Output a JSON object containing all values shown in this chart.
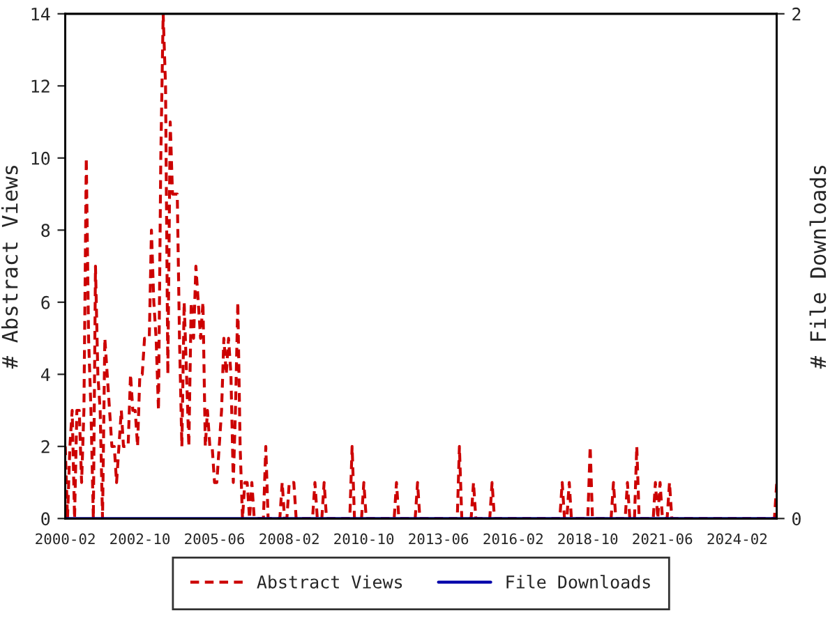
{
  "chart_data": {
    "type": "line",
    "ylabel": "# Abstract Views",
    "y2label": "# File Downloads",
    "xlim": [
      "2000-02",
      "2025-07"
    ],
    "xticks": [
      "2000-02",
      "2002-10",
      "2005-06",
      "2008-02",
      "2010-10",
      "2013-06",
      "2016-02",
      "2018-10",
      "2021-06",
      "2024-02"
    ],
    "ylim": [
      0,
      14
    ],
    "yticks": [
      0,
      2,
      4,
      6,
      8,
      10,
      12,
      14
    ],
    "y2lim": [
      0,
      2
    ],
    "y2ticks": [
      0,
      2
    ],
    "grid": false,
    "legend": "bottom",
    "series": [
      {
        "name": "Abstract Views",
        "color": "#cc0000",
        "line_style": "dashed",
        "axis": "y",
        "x": [
          "2000-02",
          "2000-03",
          "2000-04",
          "2000-05",
          "2000-06",
          "2000-07",
          "2000-08",
          "2000-09",
          "2000-10",
          "2000-11",
          "2000-12",
          "2001-01",
          "2001-02",
          "2001-03",
          "2001-04",
          "2001-05",
          "2001-06",
          "2001-07",
          "2001-08",
          "2001-09",
          "2001-10",
          "2001-11",
          "2001-12",
          "2002-01",
          "2002-02",
          "2002-03",
          "2002-04",
          "2002-05",
          "2002-06",
          "2002-07",
          "2002-08",
          "2002-09",
          "2002-10",
          "2002-11",
          "2002-12",
          "2003-01",
          "2003-02",
          "2003-03",
          "2003-04",
          "2003-05",
          "2003-06",
          "2003-07",
          "2003-08",
          "2003-09",
          "2003-10",
          "2003-11",
          "2003-12",
          "2004-01",
          "2004-02",
          "2004-03",
          "2004-04",
          "2004-05",
          "2004-06",
          "2004-07",
          "2004-08",
          "2004-09",
          "2004-10",
          "2004-11",
          "2004-12",
          "2005-01",
          "2005-02",
          "2005-03",
          "2005-04",
          "2005-05",
          "2005-06",
          "2005-07",
          "2005-08",
          "2005-09",
          "2005-10",
          "2005-11",
          "2005-12",
          "2006-01",
          "2006-02",
          "2006-03",
          "2006-04",
          "2006-05",
          "2006-06",
          "2006-07",
          "2006-08",
          "2006-09",
          "2006-10",
          "2006-11",
          "2007-03",
          "2007-04",
          "2007-05",
          "2007-10",
          "2007-11",
          "2007-12",
          "2008-01",
          "2008-02",
          "2008-03",
          "2008-04",
          "2008-05",
          "2008-12",
          "2009-01",
          "2009-02",
          "2009-04",
          "2009-05",
          "2009-06",
          "2010-04",
          "2010-05",
          "2010-06",
          "2010-09",
          "2010-10",
          "2010-11",
          "2011-11",
          "2011-12",
          "2012-01",
          "2012-08",
          "2012-09",
          "2012-10",
          "2014-02",
          "2014-03",
          "2014-04",
          "2014-08",
          "2014-09",
          "2014-10",
          "2015-04",
          "2015-05",
          "2015-06",
          "2017-10",
          "2017-11",
          "2017-12",
          "2018-01",
          "2018-02",
          "2018-03",
          "2018-10",
          "2018-11",
          "2018-12",
          "2019-08",
          "2019-09",
          "2019-10",
          "2020-02",
          "2020-03",
          "2020-04",
          "2020-06",
          "2020-07",
          "2020-08",
          "2021-02",
          "2021-03",
          "2021-04",
          "2021-05",
          "2021-06",
          "2021-08",
          "2021-09",
          "2021-10",
          "2025-06",
          "2025-07"
        ],
        "values": [
          2,
          0,
          2,
          3,
          0,
          3,
          3,
          1,
          3,
          10,
          5,
          3,
          0,
          7,
          4,
          3,
          0,
          5,
          4,
          3,
          2,
          2,
          1,
          2,
          3,
          2,
          2,
          2,
          4,
          3,
          3,
          2,
          4,
          4,
          5,
          5,
          5,
          8,
          6,
          5,
          3,
          10,
          14,
          12,
          4,
          11,
          9,
          9,
          9,
          5,
          2,
          6,
          4,
          2,
          6,
          5,
          7,
          6,
          5,
          6,
          2,
          3,
          2,
          2,
          1,
          1,
          2,
          3,
          5,
          4,
          5,
          4,
          1,
          3,
          6,
          2,
          0,
          1,
          1,
          0,
          1,
          0,
          0,
          2,
          0,
          0,
          1,
          0,
          0,
          1,
          1,
          1,
          0,
          0,
          1,
          0,
          0,
          1,
          0,
          0,
          2,
          0,
          0,
          1,
          0,
          0,
          1,
          0,
          0,
          1,
          0,
          0,
          2,
          0,
          0,
          1,
          0,
          0,
          1,
          0,
          0,
          1,
          0,
          0,
          1,
          0,
          0,
          2,
          0,
          0,
          1,
          0,
          0,
          1,
          0,
          0,
          2,
          0,
          0,
          1,
          0,
          1,
          0,
          0,
          1,
          0,
          0,
          1
        ]
      },
      {
        "name": "File Downloads",
        "color": "#0000aa",
        "line_style": "solid",
        "axis": "y2",
        "x": [
          "2000-02",
          "2025-07"
        ],
        "values": [
          0,
          0
        ]
      }
    ]
  }
}
